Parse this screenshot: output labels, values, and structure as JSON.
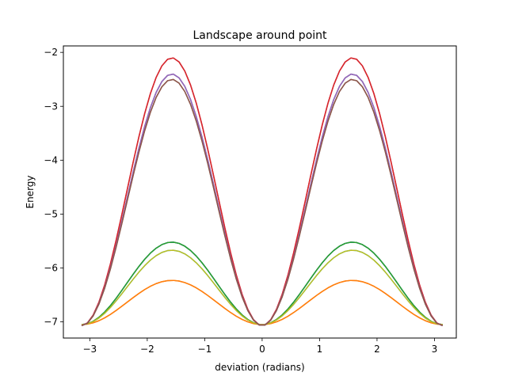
{
  "chart_data": {
    "type": "line",
    "title": "Landscape around point",
    "xlabel": "deviation (radians)",
    "ylabel": "Energy",
    "xlim": [
      -3.46,
      3.38
    ],
    "ylim": [
      -7.3,
      -1.88
    ],
    "xticks": [
      -3,
      -2,
      -1,
      0,
      1,
      2,
      3
    ],
    "xtick_labels": [
      "−3",
      "−2",
      "−1",
      "0",
      "1",
      "2",
      "3"
    ],
    "yticks": [
      -7,
      -6,
      -5,
      -4,
      -3,
      -2
    ],
    "ytick_labels": [
      "−7",
      "−6",
      "−5",
      "−4",
      "−3",
      "−2"
    ],
    "grid": false,
    "x_range": [
      -3.1416,
      3.1416
    ],
    "n_points": 64,
    "series": [
      {
        "color": "#1f77b4",
        "model": "sin2",
        "base": -7.05,
        "peak": -5.52,
        "x": [
          0,
          1.5708,
          3.1416,
          -1.5708,
          -3.1416
        ],
        "y": [
          -7.05,
          -5.52,
          -7.05,
          -5.52,
          -7.05
        ]
      },
      {
        "color": "#ff7f0e",
        "model": "sin2",
        "base": -7.05,
        "peak": -6.23,
        "x": [
          0,
          1.5708,
          3.1416,
          -1.5708,
          -3.1416
        ],
        "y": [
          -7.05,
          -6.23,
          -7.05,
          -6.23,
          -7.05
        ]
      },
      {
        "color": "#2ca02c",
        "model": "sin2",
        "base": -7.05,
        "peak": -5.52,
        "x": [
          0,
          1.5708,
          3.1416,
          -1.5708,
          -3.1416
        ],
        "y": [
          -7.05,
          -5.52,
          -7.05,
          -5.52,
          -7.05
        ]
      },
      {
        "color": "#d62728",
        "model": "sin2",
        "base": -7.07,
        "peak": -2.1,
        "x": [
          0,
          1.5708,
          3.1416,
          -1.5708,
          -3.1416
        ],
        "y": [
          -7.07,
          -2.1,
          -7.07,
          -2.1,
          -7.07
        ]
      },
      {
        "color": "#9467bd",
        "model": "sin2",
        "base": -7.07,
        "peak": -2.4,
        "x": [
          0,
          1.5708,
          3.1416,
          -1.5708,
          -3.1416
        ],
        "y": [
          -7.07,
          -2.4,
          -7.07,
          -2.4,
          -7.07
        ]
      },
      {
        "color": "#8c564b",
        "model": "sin2",
        "base": -7.07,
        "peak": -2.5,
        "x": [
          0,
          1.5708,
          3.1416,
          -1.5708,
          -3.1416
        ],
        "y": [
          -7.07,
          -2.5,
          -7.07,
          -2.5,
          -7.07
        ]
      },
      {
        "color": "#e377c2",
        "model": "sin2",
        "base": -7.07,
        "peak": -2.1,
        "x": [
          0,
          1.5708,
          3.1416,
          -1.5708,
          -3.1416
        ],
        "y": [
          -7.07,
          -2.1,
          -7.07,
          -2.1,
          -7.07
        ]
      },
      {
        "color": "#7f7f7f",
        "model": "sin2",
        "base": -7.07,
        "peak": -2.4,
        "x": [
          0,
          1.5708,
          3.1416,
          -1.5708,
          -3.1416
        ],
        "y": [
          -7.07,
          -2.4,
          -7.07,
          -2.4,
          -7.07
        ]
      },
      {
        "color": "#bcbd22",
        "model": "sin2",
        "base": -7.05,
        "peak": -5.67,
        "x": [
          0,
          1.5708,
          3.1416,
          -1.5708,
          -3.1416
        ],
        "y": [
          -7.05,
          -5.67,
          -7.05,
          -5.67,
          -7.05
        ]
      },
      {
        "color": "#17becf",
        "model": "sin2",
        "base": -7.05,
        "peak": -5.67,
        "x": [
          0,
          1.5708,
          3.1416,
          -1.5708,
          -3.1416
        ],
        "y": [
          -7.05,
          -5.67,
          -7.05,
          -5.67,
          -7.05
        ]
      },
      {
        "color": "#1f77b4",
        "model": "sin2",
        "base": -7.05,
        "peak": -5.52,
        "x": [
          0,
          1.5708,
          3.1416,
          -1.5708,
          -3.1416
        ],
        "y": [
          -7.05,
          -5.52,
          -7.05,
          -5.52,
          -7.05
        ]
      },
      {
        "color": "#ff7f0e",
        "model": "sin2",
        "base": -7.05,
        "peak": -6.23,
        "x": [
          0,
          1.5708,
          3.1416,
          -1.5708,
          -3.1416
        ],
        "y": [
          -7.05,
          -6.23,
          -7.05,
          -6.23,
          -7.05
        ]
      },
      {
        "color": "#d62728",
        "model": "sin2",
        "base": -7.07,
        "peak": -2.1,
        "x": [
          0,
          1.5708,
          3.1416,
          -1.5708,
          -3.1416
        ],
        "y": [
          -7.07,
          -2.1,
          -7.07,
          -2.1,
          -7.07
        ]
      },
      {
        "color": "#9467bd",
        "model": "sin2",
        "base": -7.07,
        "peak": -2.4,
        "x": [
          0,
          1.5708,
          3.1416,
          -1.5708,
          -3.1416
        ],
        "y": [
          -7.07,
          -2.4,
          -7.07,
          -2.4,
          -7.07
        ]
      },
      {
        "color": "#8c564b",
        "model": "sin2",
        "base": -7.07,
        "peak": -2.5,
        "x": [
          0,
          1.5708,
          3.1416,
          -1.5708,
          -3.1416
        ],
        "y": [
          -7.07,
          -2.5,
          -7.07,
          -2.5,
          -7.07
        ]
      }
    ]
  }
}
